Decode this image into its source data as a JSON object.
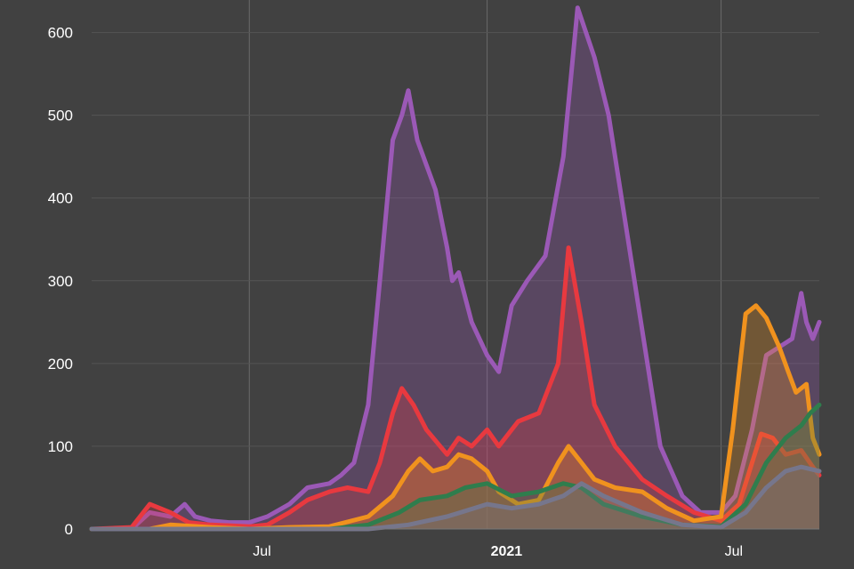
{
  "chart_data": {
    "type": "area",
    "title": "",
    "xlabel": "",
    "ylabel": "",
    "x_range": [
      "2020-03-01",
      "2021-09-15"
    ],
    "ylim": [
      0,
      620
    ],
    "y_ticks": [
      0,
      100,
      200,
      300,
      400,
      500,
      600
    ],
    "x_ticks": [
      {
        "date": "2020-07-01",
        "label": "Jul",
        "bold": false
      },
      {
        "date": "2021-01-01",
        "label": "2021",
        "bold": true
      },
      {
        "date": "2021-07-01",
        "label": "Jul",
        "bold": false
      }
    ],
    "grid": {
      "horizontal": true,
      "vertical": true
    },
    "legend": "none",
    "series": [
      {
        "color": "#9b59b6",
        "points": [
          [
            "2020-03-01",
            0
          ],
          [
            "2020-04-01",
            0
          ],
          [
            "2020-04-15",
            20
          ],
          [
            "2020-05-01",
            15
          ],
          [
            "2020-05-12",
            30
          ],
          [
            "2020-05-20",
            15
          ],
          [
            "2020-06-01",
            10
          ],
          [
            "2020-06-15",
            8
          ],
          [
            "2020-07-01",
            8
          ],
          [
            "2020-07-15",
            15
          ],
          [
            "2020-08-01",
            30
          ],
          [
            "2020-08-15",
            50
          ],
          [
            "2020-09-01",
            55
          ],
          [
            "2020-09-10",
            65
          ],
          [
            "2020-09-20",
            80
          ],
          [
            "2020-10-01",
            150
          ],
          [
            "2020-10-10",
            300
          ],
          [
            "2020-10-20",
            470
          ],
          [
            "2020-10-27",
            500
          ],
          [
            "2020-11-01",
            530
          ],
          [
            "2020-11-08",
            470
          ],
          [
            "2020-11-15",
            440
          ],
          [
            "2020-11-22",
            410
          ],
          [
            "2020-12-01",
            340
          ],
          [
            "2020-12-05",
            300
          ],
          [
            "2020-12-10",
            310
          ],
          [
            "2020-12-20",
            250
          ],
          [
            "2021-01-01",
            210
          ],
          [
            "2021-01-10",
            190
          ],
          [
            "2021-01-20",
            270
          ],
          [
            "2021-02-01",
            300
          ],
          [
            "2021-02-15",
            330
          ],
          [
            "2021-03-01",
            450
          ],
          [
            "2021-03-12",
            630
          ],
          [
            "2021-03-25",
            570
          ],
          [
            "2021-04-05",
            500
          ],
          [
            "2021-04-15",
            400
          ],
          [
            "2021-04-25",
            300
          ],
          [
            "2021-05-05",
            200
          ],
          [
            "2021-05-15",
            100
          ],
          [
            "2021-06-01",
            40
          ],
          [
            "2021-06-15",
            20
          ],
          [
            "2021-07-01",
            20
          ],
          [
            "2021-07-12",
            40
          ],
          [
            "2021-07-25",
            120
          ],
          [
            "2021-08-05",
            210
          ],
          [
            "2021-08-15",
            220
          ],
          [
            "2021-08-25",
            230
          ],
          [
            "2021-09-01",
            285
          ],
          [
            "2021-09-05",
            250
          ],
          [
            "2021-09-10",
            230
          ],
          [
            "2021-09-15",
            250
          ]
        ]
      },
      {
        "color": "#e8393f",
        "points": [
          [
            "2020-03-01",
            0
          ],
          [
            "2020-04-01",
            2
          ],
          [
            "2020-04-15",
            30
          ],
          [
            "2020-05-01",
            20
          ],
          [
            "2020-05-15",
            8
          ],
          [
            "2020-06-01",
            5
          ],
          [
            "2020-07-01",
            3
          ],
          [
            "2020-07-15",
            5
          ],
          [
            "2020-08-01",
            20
          ],
          [
            "2020-08-15",
            35
          ],
          [
            "2020-09-01",
            45
          ],
          [
            "2020-09-15",
            50
          ],
          [
            "2020-10-01",
            45
          ],
          [
            "2020-10-10",
            80
          ],
          [
            "2020-10-20",
            140
          ],
          [
            "2020-10-27",
            170
          ],
          [
            "2020-11-05",
            150
          ],
          [
            "2020-11-15",
            120
          ],
          [
            "2020-12-01",
            90
          ],
          [
            "2020-12-10",
            110
          ],
          [
            "2020-12-20",
            100
          ],
          [
            "2021-01-01",
            120
          ],
          [
            "2021-01-10",
            100
          ],
          [
            "2021-01-25",
            130
          ],
          [
            "2021-02-10",
            140
          ],
          [
            "2021-02-25",
            200
          ],
          [
            "2021-03-05",
            340
          ],
          [
            "2021-03-15",
            250
          ],
          [
            "2021-03-25",
            150
          ],
          [
            "2021-04-10",
            100
          ],
          [
            "2021-05-01",
            60
          ],
          [
            "2021-05-20",
            40
          ],
          [
            "2021-06-10",
            20
          ],
          [
            "2021-07-01",
            10
          ],
          [
            "2021-07-15",
            30
          ],
          [
            "2021-07-25",
            80
          ],
          [
            "2021-08-01",
            115
          ],
          [
            "2021-08-10",
            110
          ],
          [
            "2021-08-20",
            90
          ],
          [
            "2021-09-01",
            95
          ],
          [
            "2021-09-10",
            75
          ],
          [
            "2021-09-15",
            65
          ]
        ]
      },
      {
        "color": "#f0921e",
        "points": [
          [
            "2020-03-01",
            0
          ],
          [
            "2020-04-15",
            0
          ],
          [
            "2020-05-01",
            5
          ],
          [
            "2020-06-01",
            2
          ],
          [
            "2020-07-01",
            0
          ],
          [
            "2020-08-01",
            2
          ],
          [
            "2020-09-01",
            3
          ],
          [
            "2020-10-01",
            15
          ],
          [
            "2020-10-20",
            40
          ],
          [
            "2020-11-01",
            70
          ],
          [
            "2020-11-10",
            85
          ],
          [
            "2020-11-20",
            70
          ],
          [
            "2020-12-01",
            75
          ],
          [
            "2020-12-10",
            90
          ],
          [
            "2020-12-20",
            85
          ],
          [
            "2021-01-01",
            70
          ],
          [
            "2021-01-10",
            45
          ],
          [
            "2021-01-25",
            30
          ],
          [
            "2021-02-10",
            35
          ],
          [
            "2021-02-25",
            80
          ],
          [
            "2021-03-05",
            100
          ],
          [
            "2021-03-15",
            80
          ],
          [
            "2021-03-25",
            60
          ],
          [
            "2021-04-10",
            50
          ],
          [
            "2021-05-01",
            45
          ],
          [
            "2021-05-20",
            25
          ],
          [
            "2021-06-10",
            10
          ],
          [
            "2021-07-01",
            15
          ],
          [
            "2021-07-10",
            120
          ],
          [
            "2021-07-20",
            260
          ],
          [
            "2021-07-28",
            270
          ],
          [
            "2021-08-05",
            255
          ],
          [
            "2021-08-15",
            220
          ],
          [
            "2021-08-22",
            190
          ],
          [
            "2021-08-28",
            165
          ],
          [
            "2021-09-05",
            175
          ],
          [
            "2021-09-10",
            110
          ],
          [
            "2021-09-15",
            90
          ]
        ]
      },
      {
        "color": "#2f7d4d",
        "points": [
          [
            "2020-03-01",
            0
          ],
          [
            "2020-05-01",
            0
          ],
          [
            "2020-07-01",
            0
          ],
          [
            "2020-09-01",
            0
          ],
          [
            "2020-10-01",
            5
          ],
          [
            "2020-10-25",
            20
          ],
          [
            "2020-11-10",
            35
          ],
          [
            "2020-12-01",
            40
          ],
          [
            "2020-12-15",
            50
          ],
          [
            "2021-01-01",
            55
          ],
          [
            "2021-01-20",
            40
          ],
          [
            "2021-02-10",
            45
          ],
          [
            "2021-03-01",
            55
          ],
          [
            "2021-03-15",
            50
          ],
          [
            "2021-04-01",
            30
          ],
          [
            "2021-05-01",
            15
          ],
          [
            "2021-06-01",
            5
          ],
          [
            "2021-07-01",
            3
          ],
          [
            "2021-07-20",
            30
          ],
          [
            "2021-08-05",
            80
          ],
          [
            "2021-08-20",
            110
          ],
          [
            "2021-09-01",
            125
          ],
          [
            "2021-09-08",
            140
          ],
          [
            "2021-09-15",
            150
          ]
        ]
      },
      {
        "color": "#76768c",
        "points": [
          [
            "2020-03-01",
            0
          ],
          [
            "2020-07-01",
            0
          ],
          [
            "2020-10-01",
            0
          ],
          [
            "2020-11-01",
            5
          ],
          [
            "2020-12-01",
            15
          ],
          [
            "2021-01-01",
            30
          ],
          [
            "2021-01-20",
            25
          ],
          [
            "2021-02-10",
            30
          ],
          [
            "2021-03-01",
            40
          ],
          [
            "2021-03-15",
            55
          ],
          [
            "2021-04-01",
            40
          ],
          [
            "2021-05-01",
            20
          ],
          [
            "2021-06-01",
            5
          ],
          [
            "2021-07-01",
            2
          ],
          [
            "2021-07-20",
            20
          ],
          [
            "2021-08-05",
            50
          ],
          [
            "2021-08-20",
            70
          ],
          [
            "2021-09-01",
            75
          ],
          [
            "2021-09-15",
            70
          ]
        ]
      }
    ]
  }
}
